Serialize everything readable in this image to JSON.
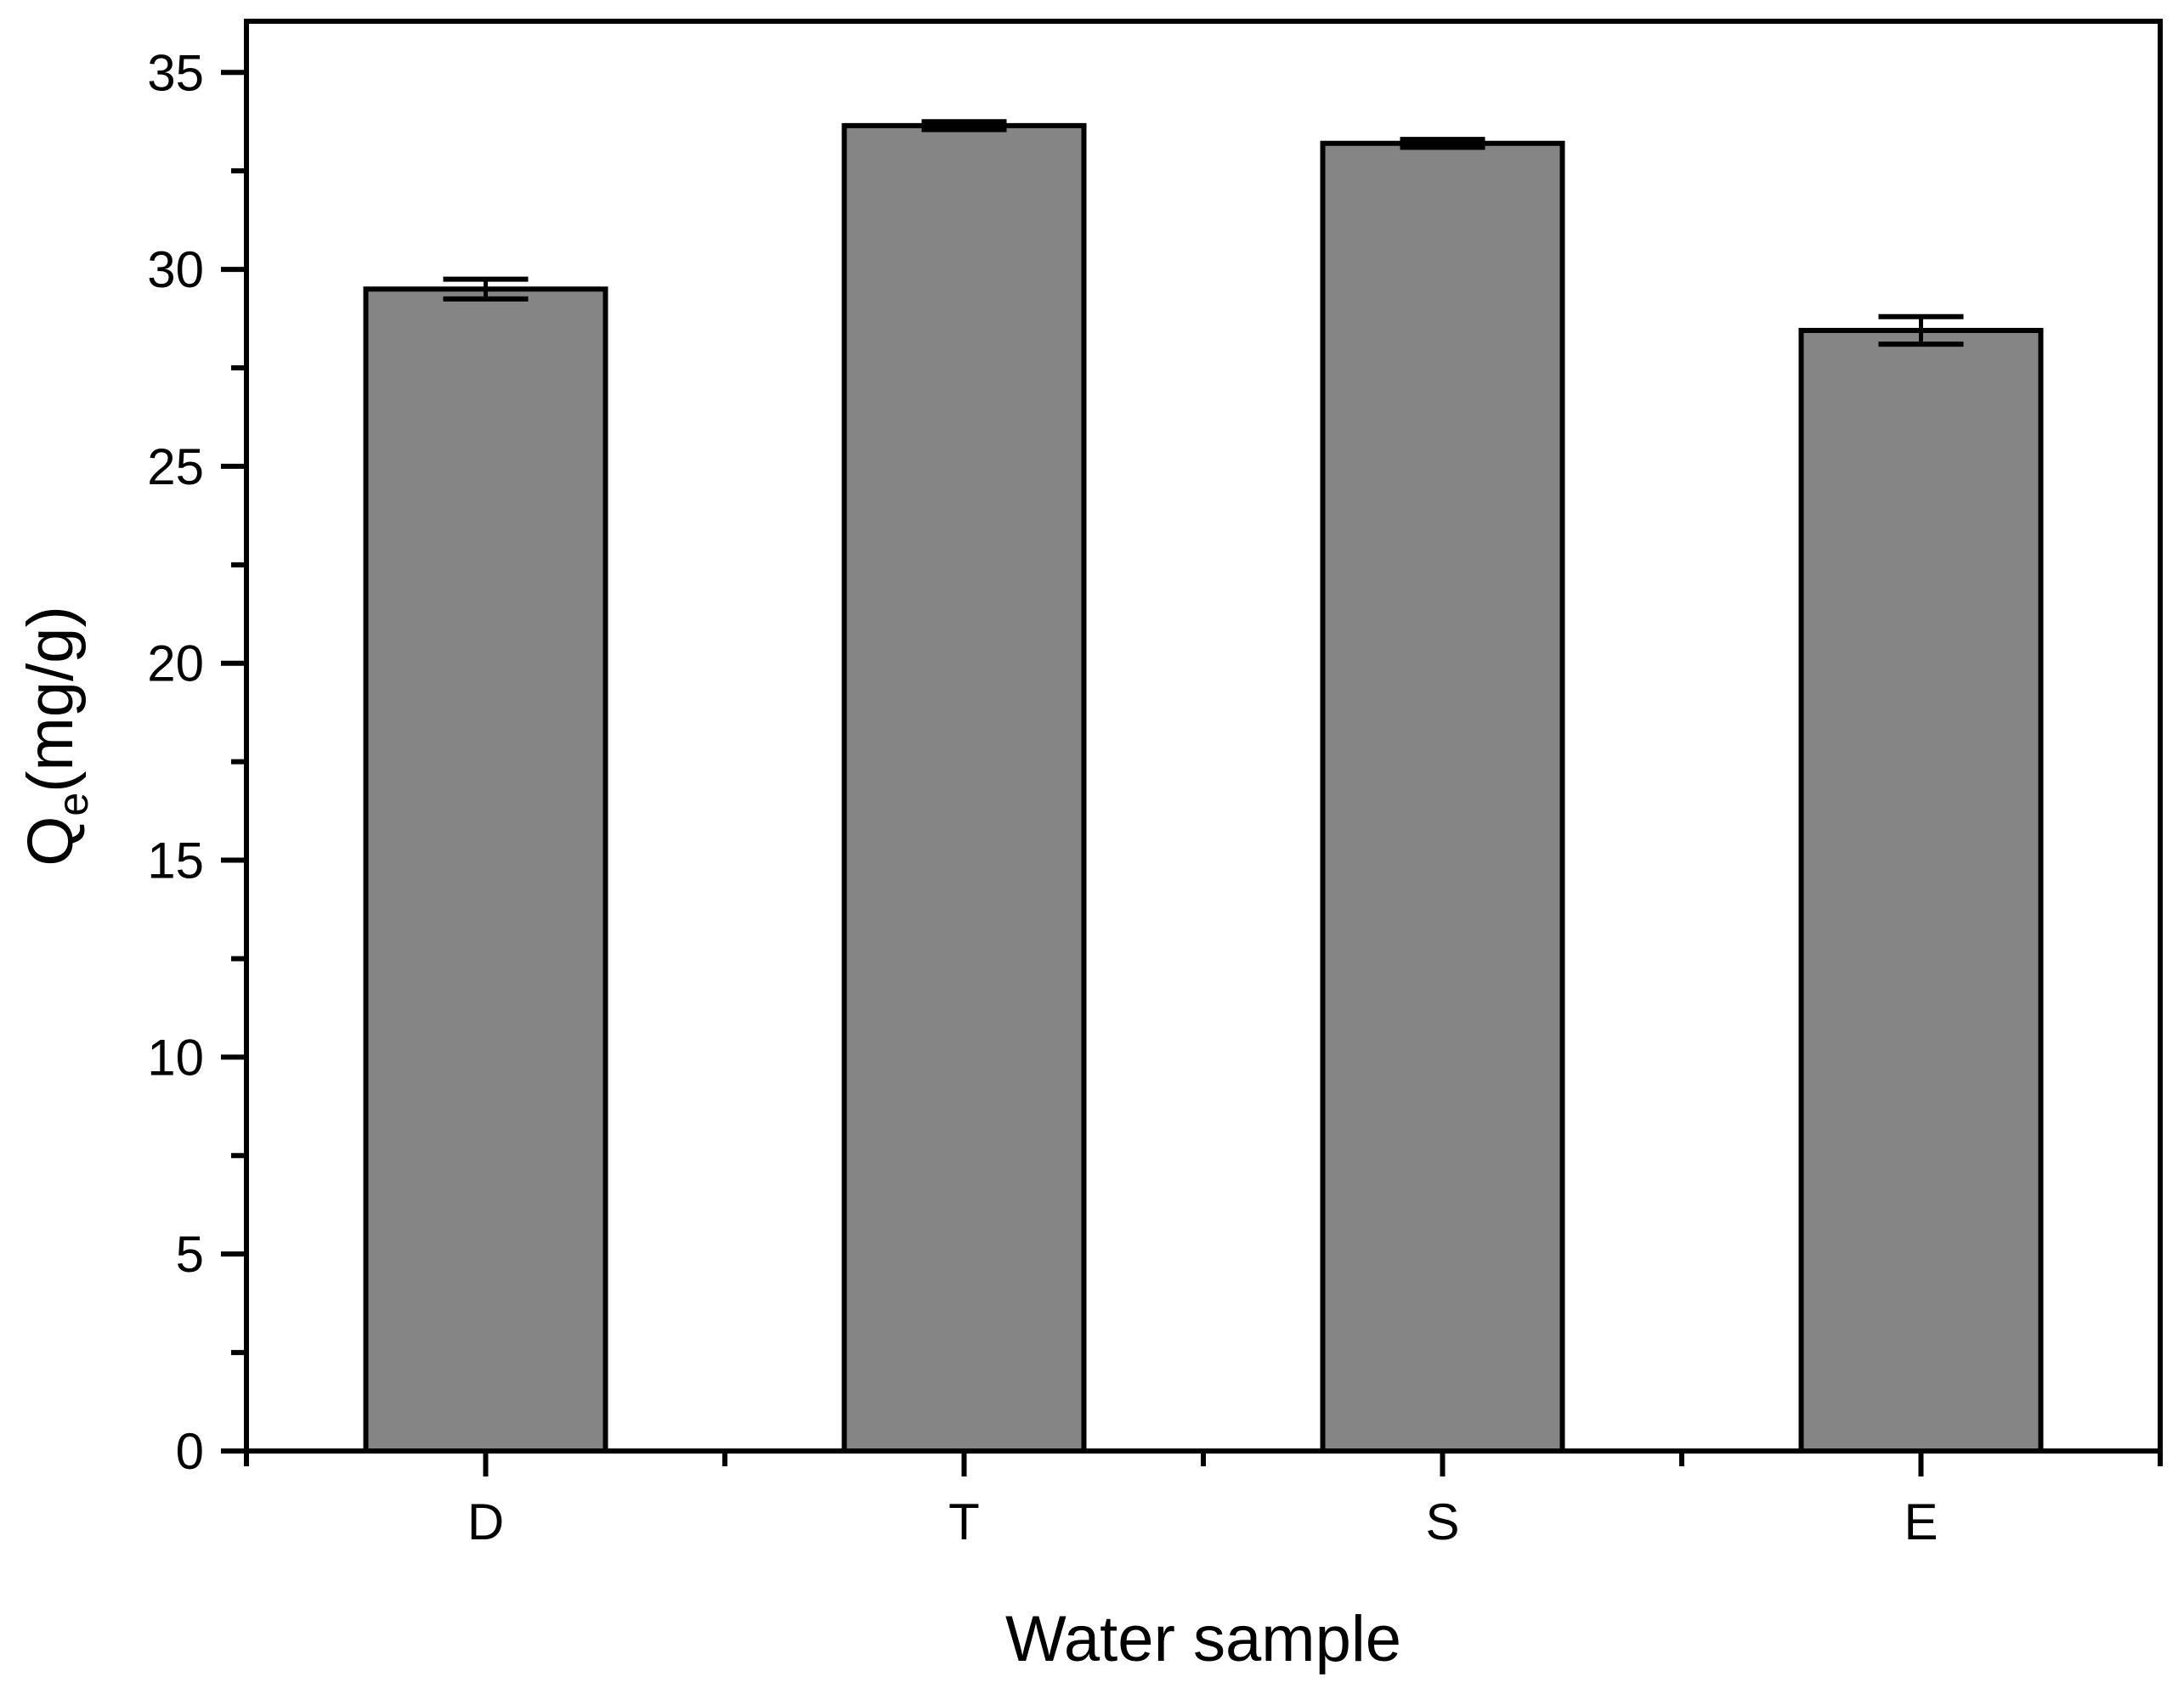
{
  "chart_data": {
    "type": "bar",
    "title": "",
    "xlabel": "Water sample",
    "ylabel_main": "Q",
    "ylabel_sub": "e",
    "ylabel_unit": "(mg/g)",
    "categories": [
      "D",
      "T",
      "S",
      "E"
    ],
    "values": [
      29.5,
      33.65,
      33.2,
      28.45
    ],
    "errors": [
      0.25,
      0.1,
      0.1,
      0.35
    ],
    "ylim": [
      0,
      36.3
    ],
    "yticks": [
      0,
      5,
      10,
      15,
      20,
      25,
      30,
      35
    ],
    "yminor_step": 2.5,
    "bar_color": "#858585",
    "edge_color": "#000000",
    "grid": false
  }
}
